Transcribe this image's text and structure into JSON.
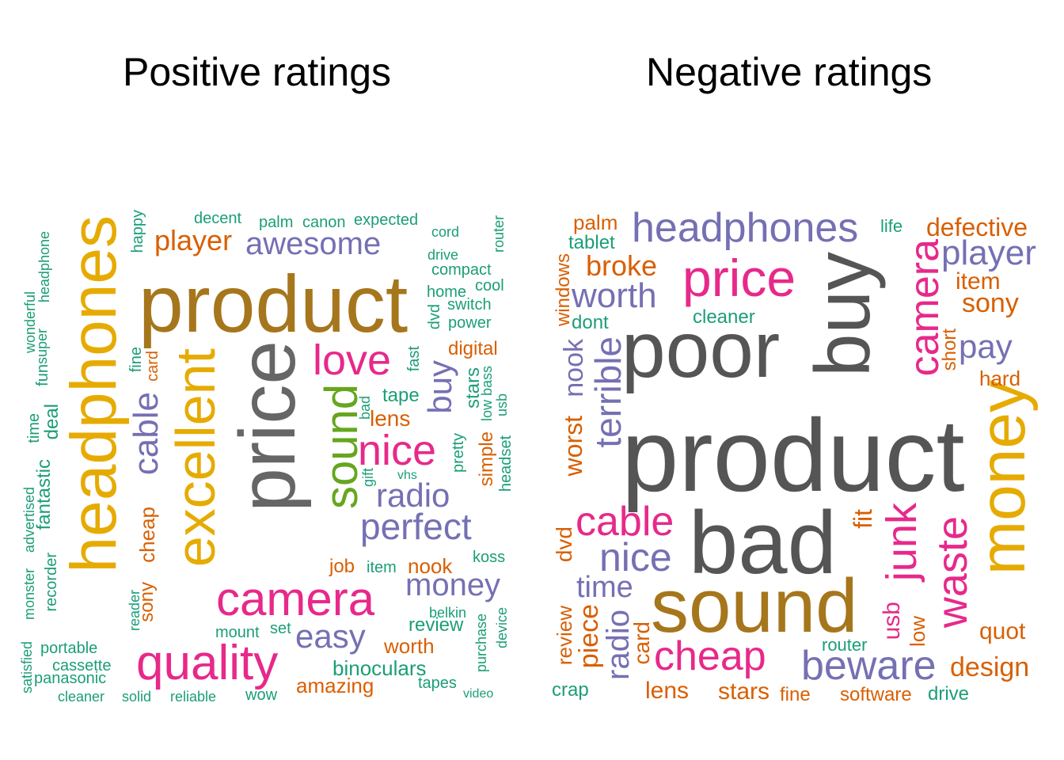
{
  "titles": {
    "positive": "Positive ratings",
    "negative": "Negative ratings"
  },
  "palette": {
    "green": "#1B9E77",
    "orange": "#D95F02",
    "purple": "#7570B3",
    "pink": "#E7298A",
    "lime": "#66A61E",
    "gold": "#E6AB02",
    "brown": "#A6761D",
    "gray": "#666666"
  },
  "positive": [
    "product",
    "price",
    "headphones",
    "excellent",
    "sound",
    "camera",
    "quality",
    "love",
    "nice",
    "awesome",
    "player",
    "perfect",
    "radio",
    "buy",
    "money",
    "easy",
    "cable",
    "cheap",
    "decent",
    "palm",
    "canon",
    "expected",
    "cord",
    "drive",
    "compact",
    "home",
    "cool",
    "switch",
    "power",
    "router",
    "happy",
    "dvd",
    "digital",
    "fast",
    "tape",
    "stars",
    "bass",
    "low",
    "usb",
    "bad",
    "lens",
    "pretty",
    "simple",
    "headset",
    "gift",
    "vhs",
    "fine",
    "card",
    "job",
    "item",
    "nook",
    "koss",
    "sony",
    "reader",
    "mount",
    "set",
    "review",
    "belkin",
    "worth",
    "purchase",
    "device",
    "binoculars",
    "amazing",
    "tapes",
    "video",
    "wow",
    "reliable",
    "solid",
    "cleaner",
    "panasonic",
    "cassette",
    "portable",
    "satisfied",
    "monster",
    "recorder",
    "advertised",
    "fantastic",
    "deal",
    "time",
    "fun",
    "super",
    "wonderful",
    "headphone"
  ],
  "negative": [
    "product",
    "bad",
    "poor",
    "buy",
    "sound",
    "money",
    "price",
    "headphones",
    "camera",
    "junk",
    "waste",
    "cheap",
    "beware",
    "cable",
    "nice",
    "terrible",
    "worth",
    "player",
    "pay",
    "broke",
    "time",
    "radio",
    "piece",
    "design",
    "defective",
    "item",
    "sony",
    "quot",
    "stars",
    "lens",
    "usb",
    "fit",
    "worst",
    "nook",
    "windows",
    "dont",
    "cleaner",
    "palm",
    "tablet",
    "life",
    "short",
    "hard",
    "dvd",
    "review",
    "crap",
    "card",
    "router",
    "low",
    "software",
    "drive",
    "fine"
  ]
}
